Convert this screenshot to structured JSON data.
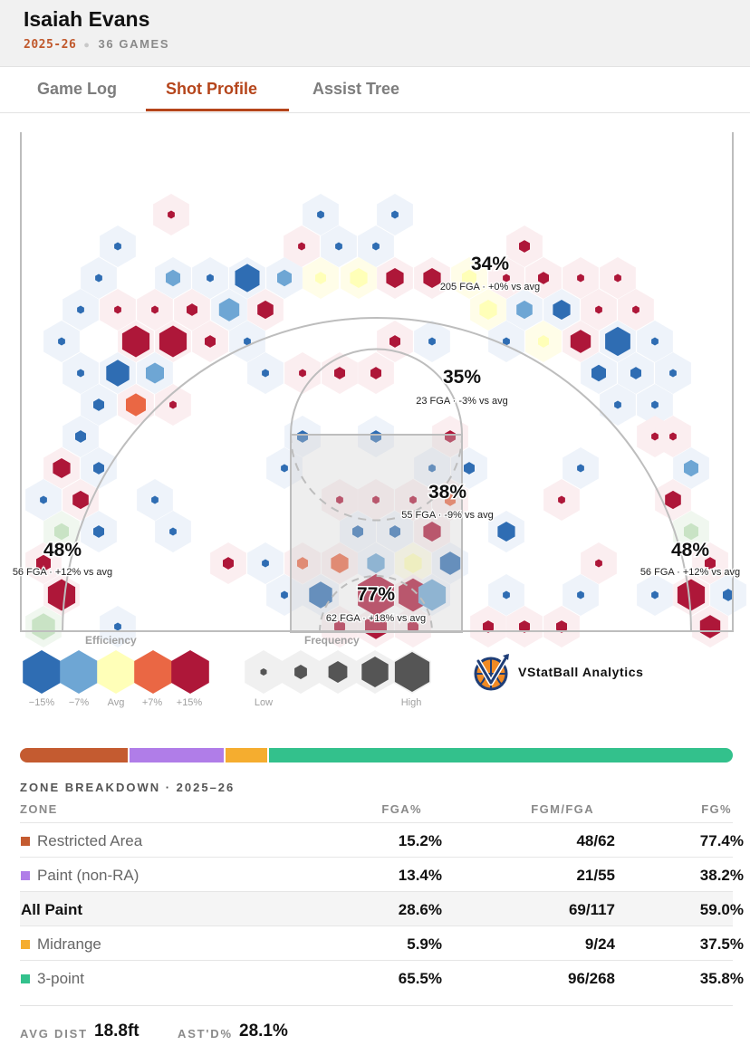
{
  "header": {
    "player_name": "Isaiah Evans",
    "season": "2025-26",
    "games": "36 GAMES"
  },
  "tabs": [
    {
      "label": "Game Log",
      "active": false
    },
    {
      "label": "Shot Profile",
      "active": true
    },
    {
      "label": "Assist Tree",
      "active": false
    }
  ],
  "court_callouts": [
    {
      "pct": "34%",
      "detail": "205 FGA · +0% vs avg"
    },
    {
      "pct": "35%",
      "detail": "23 FGA · -3% vs avg"
    },
    {
      "pct": "38%",
      "detail": "55 FGA · -9% vs avg"
    },
    {
      "pct": "48%",
      "detail": "56 FGA · +12% vs avg"
    },
    {
      "pct": "48%",
      "detail": "56 FGA · +12% vs avg"
    },
    {
      "pct": "77%",
      "detail": "62 FGA · +18% vs avg"
    }
  ],
  "efficiency_colors": {
    "cold2": "#2f6db3",
    "cold1": "#6ea6d4",
    "avg": "#ffffb8",
    "hot1": "#ea6744",
    "hot2": "#ae1739",
    "cold_faint": "#eef3fa",
    "hot_faint": "#fbeef0"
  },
  "legend": {
    "efficiency_title": "Efficiency",
    "efficiency_labels": [
      "−15%",
      "−7%",
      "Avg",
      "+7%",
      "+15%"
    ],
    "frequency_title": "Frequency",
    "frequency_low": "Low",
    "frequency_high": "High"
  },
  "brand": {
    "name": "VStatBall Analytics"
  },
  "zone_bar": [
    {
      "zone": "Restricted Area",
      "fga_pct": 15.2,
      "color": "#c45b30"
    },
    {
      "zone": "Paint (non-RA)",
      "fga_pct": 13.4,
      "color": "#b07de8"
    },
    {
      "zone": "Midrange",
      "fga_pct": 5.9,
      "color": "#f5ad2f"
    },
    {
      "zone": "3-point",
      "fga_pct": 65.5,
      "color": "#33c18c"
    }
  ],
  "breakdown": {
    "title": "ZONE BREAKDOWN · 2025–26",
    "columns": [
      "ZONE",
      "FGA%",
      "FGM/FGA",
      "FG%"
    ],
    "rows": [
      {
        "zone": "Restricted Area",
        "fga": "15.2%",
        "fgm": "48/62",
        "fg": "77.4%",
        "color": "#c45b30",
        "total": false
      },
      {
        "zone": "Paint (non-RA)",
        "fga": "13.4%",
        "fgm": "21/55",
        "fg": "38.2%",
        "color": "#b07de8",
        "total": false
      },
      {
        "zone": "All Paint",
        "fga": "28.6%",
        "fgm": "69/117",
        "fg": "59.0%",
        "color": "",
        "total": true
      },
      {
        "zone": "Midrange",
        "fga": "5.9%",
        "fgm": "9/24",
        "fg": "37.5%",
        "color": "#f5ad2f",
        "total": false
      },
      {
        "zone": "3-point",
        "fga": "65.5%",
        "fgm": "96/268",
        "fg": "35.8%",
        "color": "#33c18c",
        "total": false
      }
    ]
  },
  "footer": {
    "avg_dist_label": "AVG DIST",
    "avg_dist_value": "18.8ft",
    "astd_label": "AST'D%",
    "astd_value": "28.1%"
  }
}
